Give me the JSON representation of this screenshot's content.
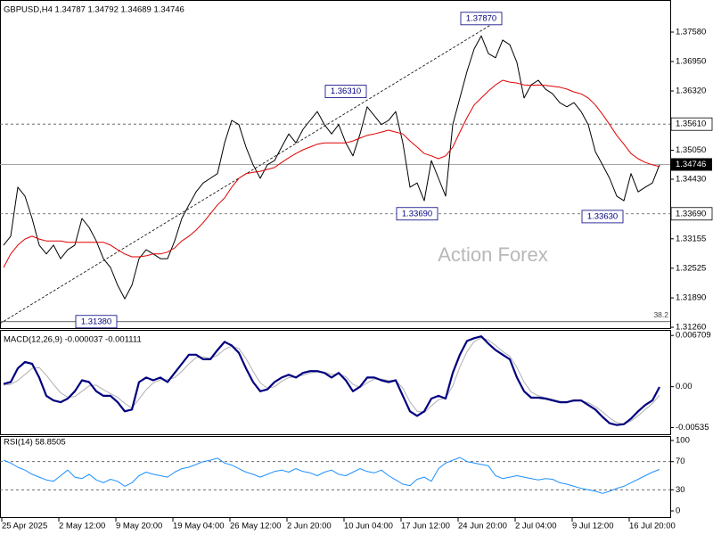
{
  "chart_data": [
    {
      "type": "line",
      "title": "GBPUSD,H4  1.34787 1.34792 1.34689 1.34746",
      "watermark": "Action Forex",
      "xlim": [
        -0.5,
        93.5
      ],
      "ylim": [
        1.31242,
        1.38172
      ],
      "yticks": [
        {
          "value": 1.3758,
          "label": "1.37580"
        },
        {
          "value": 1.3695,
          "label": "1.36950"
        },
        {
          "value": 1.3632,
          "label": "1.36320"
        },
        {
          "value": 1.3505,
          "label": "1.35050"
        },
        {
          "value": 1.3443,
          "label": "1.34430"
        },
        {
          "value": 1.33155,
          "label": "1.33155"
        },
        {
          "value": 1.32525,
          "label": "1.32525"
        },
        {
          "value": 1.3189,
          "label": "1.31890"
        },
        {
          "value": 1.3126,
          "label": "1.31260"
        }
      ],
      "series": [
        {
          "color": "#000000",
          "values": [
            1.3302,
            1.3321,
            1.3426,
            1.3407,
            1.3359,
            1.3302,
            1.3283,
            1.3302,
            1.3273,
            1.3292,
            1.3302,
            1.3359,
            1.334,
            1.3311,
            1.3273,
            1.3254,
            1.3216,
            1.3187,
            1.3216,
            1.3273,
            1.3292,
            1.3283,
            1.3273,
            1.3273,
            1.3311,
            1.3359,
            1.3388,
            1.3416,
            1.3435,
            1.3445,
            1.3455,
            1.3521,
            1.3569,
            1.356,
            1.3512,
            1.3474,
            1.3445,
            1.3474,
            1.3483,
            1.3512,
            1.354,
            1.3521,
            1.355,
            1.3569,
            1.3588,
            1.356,
            1.354,
            1.356,
            1.3521,
            1.3493,
            1.354,
            1.3598,
            1.3579,
            1.356,
            1.3569,
            1.3588,
            1.3521,
            1.3426,
            1.3435,
            1.3397,
            1.3483,
            1.3445,
            1.3407,
            1.356,
            1.3617,
            1.3674,
            1.3722,
            1.375,
            1.3712,
            1.3703,
            1.3741,
            1.3731,
            1.3693,
            1.3617,
            1.3645,
            1.3655,
            1.3636,
            1.3626,
            1.3607,
            1.3598,
            1.3607,
            1.3588,
            1.356,
            1.3502,
            1.3474,
            1.3445,
            1.3407,
            1.3397,
            1.3455,
            1.3416,
            1.3426,
            1.3435,
            1.3474
          ]
        },
        {
          "color": "#e00000",
          "values": [
            1.3254,
            1.3283,
            1.3302,
            1.3315,
            1.3321,
            1.3315,
            1.3311,
            1.3311,
            1.3311,
            1.3308,
            1.3308,
            1.3308,
            1.3308,
            1.3308,
            1.3308,
            1.3302,
            1.3292,
            1.3283,
            1.3277,
            1.3277,
            1.3279,
            1.3283,
            1.3283,
            1.3287,
            1.3296,
            1.3311,
            1.3321,
            1.3334,
            1.335,
            1.3369,
            1.3388,
            1.3403,
            1.3426,
            1.3445,
            1.3455,
            1.3458,
            1.346,
            1.3464,
            1.3468,
            1.3479,
            1.3489,
            1.3498,
            1.3506,
            1.3512,
            1.3518,
            1.3521,
            1.3521,
            1.3521,
            1.3521,
            1.3525,
            1.3531,
            1.3537,
            1.354,
            1.3544,
            1.3548,
            1.3544,
            1.354,
            1.3525,
            1.3512,
            1.3498,
            1.3493,
            1.3487,
            1.3493,
            1.3512,
            1.3544,
            1.3575,
            1.3602,
            1.3617,
            1.3632,
            1.3645,
            1.3655,
            1.3651,
            1.3649,
            1.3645,
            1.3644,
            1.3645,
            1.3644,
            1.3642,
            1.364,
            1.3636,
            1.363,
            1.3626,
            1.3617,
            1.3602,
            1.3582,
            1.356,
            1.3537,
            1.3518,
            1.3498,
            1.3487,
            1.3479,
            1.3474,
            1.347
          ]
        }
      ],
      "levels": [
        {
          "value": 1.3561,
          "label": "1.35610",
          "style": "dashed",
          "label_at": "axis"
        },
        {
          "value": 1.3369,
          "label": "1.33690",
          "style": "dashed",
          "label_at": "axis"
        },
        {
          "value": 1.3138,
          "label": "38.2",
          "style": "solid",
          "label_at": "end"
        }
      ],
      "last": {
        "value": 1.34746,
        "label": "1.34746"
      },
      "trendline": {
        "x": [
          -0.5,
          70
        ],
        "y": [
          1.3134,
          1.3789
        ]
      },
      "annotations": [
        {
          "x": 67,
          "value": 1.3787,
          "label": "1.37870"
        },
        {
          "x": 48,
          "value": 1.3631,
          "label": "1.36310"
        },
        {
          "x": 58,
          "value": 1.3369,
          "label": "1.33690"
        },
        {
          "x": 84,
          "value": 1.3363,
          "label": "1.33630"
        },
        {
          "x": 13,
          "value": 1.3138,
          "label": "1.31380"
        }
      ]
    },
    {
      "type": "line",
      "title": "MACD(12,26,9) -0.000037 -0.001111",
      "xlim": [
        -0.5,
        93.5
      ],
      "ylim": [
        -0.00623,
        0.0072
      ],
      "yticks": [
        0.006709,
        {
          "value": 0,
          "label": "0.00"
        },
        -0.00535
      ],
      "series": [
        {
          "color": "#b0b0b0",
          "width": 1,
          "values": [
            0.0002,
            0.0003,
            0.0008,
            0.0016,
            0.0024,
            0.0025,
            0.0015,
            0.0003,
            -0.0008,
            -0.0014,
            -0.0013,
            -0.0006,
            0.0001,
            0.0002,
            -0.0004,
            -0.0009,
            -0.0014,
            -0.0022,
            -0.0028,
            -0.0016,
            -0.0004,
            0.0005,
            0.0009,
            0.0009,
            0.0012,
            0.002,
            0.003,
            0.0038,
            0.0039,
            0.0037,
            0.0041,
            0.0049,
            0.0053,
            0.005,
            0.0037,
            0.002,
            0.0005,
            -0.0002,
            0.0,
            0.0007,
            0.0012,
            0.0013,
            0.0015,
            0.0018,
            0.00195,
            0.0019,
            0.0016,
            0.00165,
            0.0013,
            0.0003,
            -0.0001,
            0.0005,
            0.001,
            0.001,
            0.0008,
            0.0008,
            -0.0002,
            -0.002,
            -0.0032,
            -0.0034,
            -0.0025,
            -0.0017,
            -0.0015,
            0.0001,
            0.0026,
            0.0046,
            0.0059,
            0.0064,
            0.0061,
            0.0054,
            0.0046,
            0.004,
            0.0025,
            0.0006,
            -0.0007,
            -0.0012,
            -0.00145,
            -0.00165,
            -0.0019,
            -0.002,
            -0.0019,
            -0.00185,
            -0.0021,
            -0.0026,
            -0.0033,
            -0.0041,
            -0.0047,
            -0.0049,
            -0.0045,
            -0.0038,
            -0.003,
            -0.0022,
            -0.00111
          ]
        },
        {
          "color": "#000080",
          "width": 2.2,
          "values": [
            0.00036,
            0.0006,
            0.0024,
            0.00323,
            0.003,
            0.0012,
            -0.0012,
            -0.0018,
            -0.00204,
            -0.00156,
            -0.0006,
            0.00084,
            0.0006,
            -0.0006,
            -0.0012,
            -0.0012,
            -0.00204,
            -0.00323,
            -0.003,
            0.0006,
            0.0012,
            0.00084,
            0.0012,
            0.0006,
            0.0018,
            0.003,
            0.00419,
            0.00419,
            0.00359,
            0.00359,
            0.00479,
            0.00587,
            0.00539,
            0.00443,
            0.0024,
            0.0006,
            -0.0006,
            -0.00036,
            0.0006,
            0.0012,
            0.00156,
            0.0012,
            0.0018,
            0.00204,
            0.00204,
            0.0018,
            0.0012,
            0.0018,
            0.00084,
            -0.0006,
            0,
            0.0012,
            0.0012,
            0.00084,
            0.0006,
            0.00084,
            -0.0012,
            -0.00323,
            -0.00383,
            -0.00323,
            -0.00156,
            -0.0012,
            -0.00156,
            0.0018,
            0.00419,
            0.00599,
            0.00635,
            0.00659,
            0.00563,
            0.00479,
            0.00419,
            0.00359,
            0.0012,
            -0.0006,
            -0.00144,
            -0.00144,
            -0.00156,
            -0.0018,
            -0.00204,
            -0.00204,
            -0.0018,
            -0.0018,
            -0.0024,
            -0.003,
            -0.00395,
            -0.00479,
            -0.00503,
            -0.00491,
            -0.00419,
            -0.00323,
            -0.0024,
            -0.0018,
            -4e-05
          ]
        }
      ]
    },
    {
      "type": "line",
      "title": "RSI(14) 58.8505",
      "xlim": [
        -0.5,
        93.5
      ],
      "ylim": [
        0,
        100
      ],
      "yticks": [
        100,
        70,
        30,
        0
      ],
      "levels": [
        {
          "value": 70,
          "style": "dashed"
        },
        {
          "value": 30,
          "style": "dashed"
        }
      ],
      "series": [
        {
          "color": "#1e90ff",
          "width": 1,
          "values": [
            72,
            68,
            62,
            58,
            52,
            48,
            44,
            42,
            50,
            58,
            48,
            46,
            52,
            44,
            40,
            45,
            42,
            35,
            40,
            50,
            55,
            52,
            50,
            48,
            55,
            60,
            62,
            66,
            70,
            72,
            75,
            68,
            65,
            60,
            55,
            52,
            48,
            52,
            56,
            58,
            55,
            60,
            56,
            54,
            50,
            55,
            58,
            52,
            50,
            55,
            60,
            56,
            54,
            58,
            50,
            44,
            38,
            36,
            45,
            48,
            42,
            60,
            68,
            72,
            76,
            70,
            68,
            66,
            64,
            50,
            46,
            48,
            50,
            48,
            46,
            44,
            46,
            45,
            40,
            38,
            35,
            32,
            30,
            28,
            25,
            28,
            32,
            35,
            40,
            45,
            50,
            55,
            58.85
          ]
        }
      ],
      "xticks": [
        {
          "value": -0.25,
          "label": "25 Apr 2025"
        },
        {
          "value": 7.75,
          "label": "2 May 12:00"
        },
        {
          "value": 15.75,
          "label": "9 May 20:00"
        },
        {
          "value": 23.75,
          "label": "19 May 04:00"
        },
        {
          "value": 31.75,
          "label": "26 May 12:00"
        },
        {
          "value": 39.75,
          "label": "2 Jun 20:00"
        },
        {
          "value": 47.75,
          "label": "10 Jun 04:00"
        },
        {
          "value": 55.75,
          "label": "17 Jun 12:00"
        },
        {
          "value": 63.75,
          "label": "24 Jun 20:00"
        },
        {
          "value": 71.75,
          "label": "2 Jul 04:00"
        },
        {
          "value": 79.75,
          "label": "9 Jul 12:00"
        },
        {
          "value": 87.75,
          "label": "16 Jul 20:00"
        }
      ]
    }
  ]
}
